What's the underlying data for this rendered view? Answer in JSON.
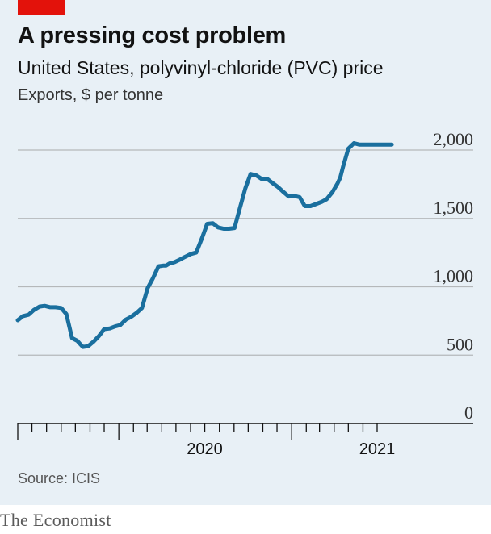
{
  "header": {
    "title": "A pressing cost problem",
    "subtitle": "United States, polyvinyl-chloride (PVC) price",
    "unit": "Exports, $ per tonne"
  },
  "footer": {
    "source": "Source: ICIS",
    "brand": "The Economist"
  },
  "colors": {
    "line": "#1a6f9e",
    "grid": "#b5b8ba",
    "axis": "#121212",
    "background": "#e8f0f6",
    "tag": "#e3120b"
  },
  "chart_data": {
    "type": "line",
    "title": "A pressing cost problem",
    "subtitle": "United States, polyvinyl-chloride (PVC) price",
    "ylabel": "Exports, $ per tonne",
    "ylim": [
      0,
      2000
    ],
    "yticks": [
      0,
      500,
      1000,
      1500,
      2000
    ],
    "ytick_labels": [
      "0",
      "500",
      "1,000",
      "1,500",
      "2,000"
    ],
    "xlim": [
      "2019-06-01",
      "2021-12-31"
    ],
    "xticks": [
      "2019-06-01",
      "2019-07-01",
      "2019-08-01",
      "2019-09-01",
      "2019-10-01",
      "2019-11-01",
      "2019-12-01",
      "2020-01-01",
      "2020-02-01",
      "2020-03-01",
      "2020-04-01",
      "2020-05-01",
      "2020-06-01",
      "2020-07-01",
      "2020-08-01",
      "2020-09-01",
      "2020-10-01",
      "2020-11-01",
      "2020-12-01",
      "2021-01-01",
      "2021-02-01",
      "2021-03-01",
      "2021-04-01",
      "2021-05-01",
      "2021-06-01",
      "2021-07-01"
    ],
    "x_labels": [
      {
        "label": "2020",
        "center": "2020-07-01"
      },
      {
        "label": "2021",
        "center": "2021-07-01"
      }
    ],
    "grid": true,
    "legend": "none",
    "series": [
      {
        "x": [
          "2019-06-01",
          "2019-06-12",
          "2019-06-24",
          "2019-07-05",
          "2019-07-17",
          "2019-07-28",
          "2019-08-09",
          "2019-08-20",
          "2019-09-01",
          "2019-09-12",
          "2019-09-24",
          "2019-10-05",
          "2019-10-10",
          "2019-10-17",
          "2019-10-28",
          "2019-11-09",
          "2019-11-20",
          "2019-12-01",
          "2019-12-13",
          "2019-12-24",
          "2020-01-04",
          "2020-01-16",
          "2020-01-27",
          "2020-02-08",
          "2020-02-19",
          "2020-03-02",
          "2020-03-13",
          "2020-03-25",
          "2020-04-05",
          "2020-04-10",
          "2020-04-17",
          "2020-04-28",
          "2020-05-10",
          "2020-05-21",
          "2020-06-02",
          "2020-06-13",
          "2020-06-25",
          "2020-07-06",
          "2020-07-18",
          "2020-07-29",
          "2020-08-10",
          "2020-08-21",
          "2020-09-02",
          "2020-09-13",
          "2020-09-25",
          "2020-10-06",
          "2020-10-18",
          "2020-10-29",
          "2020-11-04",
          "2020-11-10",
          "2020-11-21",
          "2020-12-03",
          "2020-12-14",
          "2020-12-26",
          "2021-01-06",
          "2021-01-18",
          "2021-01-29",
          "2021-02-10",
          "2021-02-21",
          "2021-03-05",
          "2021-03-16",
          "2021-03-28",
          "2021-04-08",
          "2021-04-14",
          "2021-04-20",
          "2021-05-01",
          "2021-05-13",
          "2021-05-24",
          "2021-06-05",
          "2021-06-16",
          "2021-06-28",
          "2021-07-09",
          "2021-07-21",
          "2021-08-01"
        ],
        "values": [
          755,
          785,
          795,
          830,
          855,
          860,
          850,
          850,
          845,
          800,
          625,
          605,
          585,
          560,
          565,
          600,
          640,
          690,
          695,
          710,
          720,
          760,
          780,
          810,
          845,
          990,
          1060,
          1150,
          1155,
          1155,
          1170,
          1180,
          1200,
          1220,
          1240,
          1250,
          1355,
          1460,
          1465,
          1435,
          1425,
          1425,
          1430,
          1570,
          1720,
          1825,
          1815,
          1790,
          1785,
          1790,
          1760,
          1730,
          1695,
          1660,
          1665,
          1655,
          1590,
          1590,
          1605,
          1620,
          1640,
          1690,
          1755,
          1800,
          1880,
          2010,
          2050,
          2040,
          2040,
          2040,
          2040,
          2040,
          2040,
          2040
        ]
      }
    ]
  }
}
